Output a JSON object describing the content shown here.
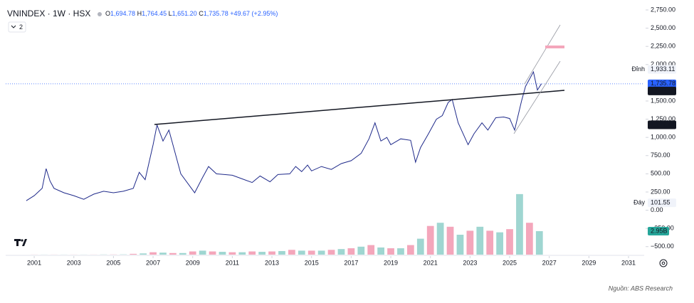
{
  "chart_data": {
    "type": "line",
    "title": "VNINDEX · 1W · HSX",
    "ohlc": [
      {
        "key": "O",
        "value": "1,694.78"
      },
      {
        "key": "H",
        "value": "1,764.45"
      },
      {
        "key": "L",
        "value": "1,651.20"
      },
      {
        "key": "C",
        "value": "1,735.78"
      }
    ],
    "change": "+49.67 (+2.95%)",
    "indicator_count": "2",
    "source": "Nguồn: ABS Research",
    "xlim": [
      1999.56,
      2031.79
    ],
    "xticks": [
      2001,
      2003,
      2005,
      2007,
      2009,
      2011,
      2013,
      2015,
      2017,
      2019,
      2021,
      2023,
      2025,
      2027,
      2029,
      2031
    ],
    "ylim": [
      -610,
      2838
    ],
    "yticks": [
      {
        "value": 2750,
        "label": "2,750.00"
      },
      {
        "value": 2500,
        "label": "2,500.00"
      },
      {
        "value": 2250,
        "label": "2,250.00"
      },
      {
        "value": 2000,
        "label": "2,000.00"
      },
      {
        "value": 1500,
        "label": "1,500.00"
      },
      {
        "value": 1250,
        "label": "1,250.00"
      },
      {
        "value": 1000,
        "label": "1,000.00"
      },
      {
        "value": 750,
        "label": "750.00"
      },
      {
        "value": 500,
        "label": "500.00"
      },
      {
        "value": 250,
        "label": "250.00"
      },
      {
        "value": 0,
        "label": "0.00"
      },
      {
        "value": -250,
        "label": "−250.00"
      },
      {
        "value": -500,
        "label": "−500.00"
      }
    ],
    "y2lim": [
      0,
      10000000000
    ],
    "series": [
      {
        "name": "VNINDEX",
        "color": "#1f2a8a",
        "x": [
          2000.6,
          2001.0,
          2001.4,
          2001.6,
          2001.8,
          2002.0,
          2002.5,
          2003.0,
          2003.5,
          2004.0,
          2004.5,
          2005.0,
          2005.5,
          2006.0,
          2006.3,
          2006.6,
          2007.0,
          2007.2,
          2007.5,
          2007.8,
          2008.0,
          2008.4,
          2008.8,
          2009.1,
          2009.5,
          2009.8,
          2010.2,
          2010.6,
          2011.0,
          2011.5,
          2012.0,
          2012.4,
          2012.9,
          2013.3,
          2013.9,
          2014.2,
          2014.5,
          2014.8,
          2015.0,
          2015.5,
          2016.0,
          2016.5,
          2017.0,
          2017.5,
          2017.9,
          2018.2,
          2018.5,
          2018.8,
          2019.0,
          2019.5,
          2020.0,
          2020.25,
          2020.5,
          2020.9,
          2021.3,
          2021.6,
          2021.9,
          2022.1,
          2022.4,
          2022.9,
          2023.2,
          2023.6,
          2023.9,
          2024.3,
          2024.7,
          2025.0,
          2025.25,
          2025.6,
          2025.8,
          2026.0,
          2026.2,
          2026.4,
          2026.6
        ],
        "values": [
          130,
          200,
          300,
          571,
          400,
          300,
          240,
          200,
          150,
          220,
          260,
          240,
          260,
          300,
          520,
          420,
          900,
          1170,
          950,
          1100,
          900,
          500,
          350,
          240,
          450,
          600,
          500,
          490,
          480,
          430,
          380,
          470,
          390,
          490,
          500,
          600,
          530,
          620,
          540,
          600,
          560,
          640,
          680,
          780,
          980,
          1200,
          950,
          1000,
          900,
          980,
          960,
          660,
          860,
          1050,
          1250,
          1300,
          1480,
          1520,
          1200,
          900,
          1050,
          1200,
          1100,
          1270,
          1280,
          1260,
          1100,
          1500,
          1700,
          1800,
          1900,
          1650,
          1735.78
        ]
      },
      {
        "name": "Volume",
        "axis": "y2",
        "colors": [
          "#f4a6bb",
          "#9fd6d1"
        ],
        "x": [
          2001.0,
          2001.5,
          2002.0,
          2002.5,
          2003.0,
          2003.5,
          2004.0,
          2004.5,
          2005.0,
          2005.5,
          2006.0,
          2006.5,
          2007.0,
          2007.5,
          2008.0,
          2008.5,
          2009.0,
          2009.5,
          2010.0,
          2010.5,
          2011.0,
          2011.5,
          2012.0,
          2012.5,
          2013.0,
          2013.5,
          2014.0,
          2014.5,
          2015.0,
          2015.5,
          2016.0,
          2016.5,
          2017.0,
          2017.5,
          2018.0,
          2018.5,
          2019.0,
          2019.5,
          2020.0,
          2020.5,
          2021.0,
          2021.5,
          2022.0,
          2022.5,
          2023.0,
          2023.5,
          2024.0,
          2024.5,
          2025.0,
          2025.5,
          2026.0,
          2026.5
        ],
        "values": [
          10000000,
          10000000,
          10000000,
          10000000,
          10000000,
          10000000,
          10000000,
          20000000,
          20000000,
          30000000,
          100000000,
          150000000,
          300000000,
          250000000,
          200000000,
          200000000,
          400000000,
          500000000,
          400000000,
          350000000,
          300000000,
          300000000,
          400000000,
          350000000,
          400000000,
          450000000,
          600000000,
          500000000,
          500000000,
          500000000,
          600000000,
          700000000,
          800000000,
          1000000000,
          1200000000,
          900000000,
          800000000,
          800000000,
          1200000000,
          2000000000,
          3600000000,
          4000000000,
          3500000000,
          2500000000,
          3000000000,
          3500000000,
          3000000000,
          2800000000,
          3200000000,
          7600000000,
          4000000000,
          2950000000
        ]
      }
    ],
    "markers": [
      {
        "tag": "Đỉnh",
        "value": 1933.11,
        "label": "1,933.11",
        "color": "#f0f3fa",
        "text_color": "#131722"
      },
      {
        "value": 1735.78,
        "label": "1,735.78",
        "color": "#2962ff",
        "text_color": "#ffffff",
        "line": true
      },
      {
        "value": 1637.93,
        "label": "1,637.93",
        "color": "#131722",
        "text_color": "#ffffff"
      },
      {
        "value": 1172.64,
        "label": "1,172.64",
        "color": "#131722",
        "text_color": "#ffffff"
      },
      {
        "tag": "Đáy",
        "value": 101.55,
        "label": "101.55",
        "color": "#f0f3fa",
        "text_color": "#131722"
      }
    ],
    "volume_label": {
      "value": 2950000000,
      "label": "2.95B",
      "color": "#26a69a"
    }
  }
}
